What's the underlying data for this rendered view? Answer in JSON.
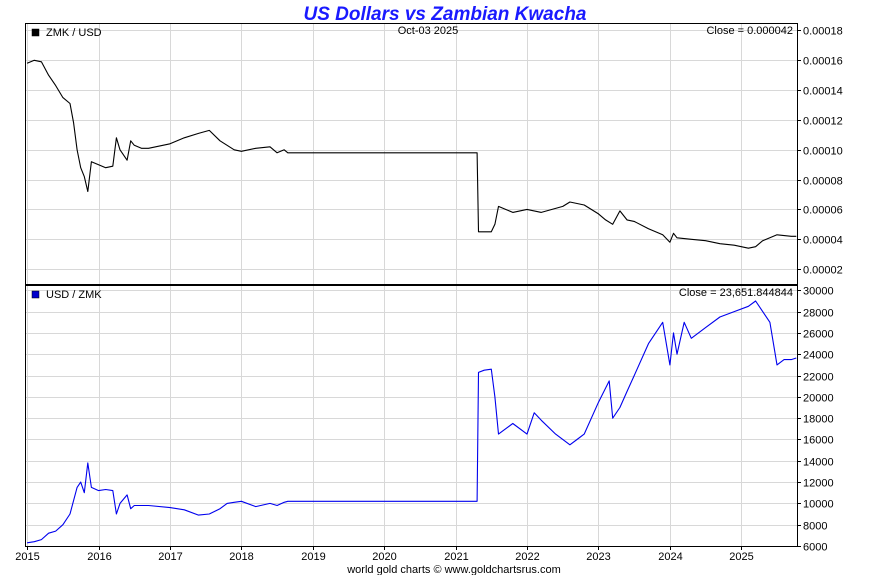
{
  "chart_data": [
    {
      "type": "line",
      "title": "US Dollars vs Zambian Kwacha",
      "legend": "ZMK / USD",
      "legend_color": "#000000",
      "date_label": "Oct-03  2025",
      "close_label": "Close = 0.000042",
      "line_color": "#000000",
      "ylim": [
        1e-05,
        0.000185
      ],
      "yticks": [
        2e-05,
        4e-05,
        6e-05,
        8e-05,
        0.0001,
        0.00012,
        0.00014,
        0.00016,
        0.00018
      ],
      "ytick_labels": [
        "0.00002",
        "0.00004",
        "0.00006",
        "0.00008",
        "0.00010",
        "0.00012",
        "0.00014",
        "0.00016",
        "0.00018"
      ],
      "x": [
        2015.0,
        2015.1,
        2015.2,
        2015.3,
        2015.4,
        2015.5,
        2015.6,
        2015.65,
        2015.7,
        2015.75,
        2015.8,
        2015.85,
        2015.9,
        2016.0,
        2016.1,
        2016.2,
        2016.25,
        2016.3,
        2016.4,
        2016.45,
        2016.5,
        2016.6,
        2016.7,
        2016.8,
        2017.0,
        2017.2,
        2017.4,
        2017.55,
        2017.7,
        2017.8,
        2017.9,
        2018.0,
        2018.2,
        2018.4,
        2018.5,
        2018.6,
        2018.65,
        2021.3,
        2021.32,
        2021.4,
        2021.5,
        2021.55,
        2021.6,
        2021.7,
        2021.8,
        2022.0,
        2022.2,
        2022.5,
        2022.6,
        2022.8,
        2023.0,
        2023.1,
        2023.2,
        2023.3,
        2023.4,
        2023.5,
        2023.7,
        2023.9,
        2024.0,
        2024.05,
        2024.1,
        2024.3,
        2024.5,
        2024.7,
        2024.9,
        2025.1,
        2025.2,
        2025.3,
        2025.5,
        2025.7,
        2025.77
      ],
      "y": [
        0.000158,
        0.00016,
        0.000159,
        0.00015,
        0.000143,
        0.000135,
        0.000131,
        0.000118,
        0.0001,
        8.8e-05,
        8.2e-05,
        7.2e-05,
        9.2e-05,
        9e-05,
        8.8e-05,
        8.9e-05,
        0.000108,
        0.0001,
        9.3e-05,
        0.000106,
        0.000103,
        0.000101,
        0.000101,
        0.000102,
        0.000104,
        0.000108,
        0.000111,
        0.000113,
        0.000106,
        0.000103,
        0.0001,
        9.9e-05,
        0.000101,
        0.000102,
        9.8e-05,
        0.0001,
        9.8e-05,
        9.8e-05,
        4.5e-05,
        4.5e-05,
        4.5e-05,
        5e-05,
        6.2e-05,
        6e-05,
        5.8e-05,
        6e-05,
        5.8e-05,
        6.2e-05,
        6.5e-05,
        6.3e-05,
        5.7e-05,
        5.3e-05,
        5e-05,
        5.9e-05,
        5.3e-05,
        5.2e-05,
        4.7e-05,
        4.3e-05,
        3.8e-05,
        4.4e-05,
        4.1e-05,
        4e-05,
        3.9e-05,
        3.7e-05,
        3.6e-05,
        3.4e-05,
        3.5e-05,
        3.9e-05,
        4.3e-05,
        4.2e-05,
        4.2e-05
      ]
    },
    {
      "type": "line",
      "legend": "USD / ZMK",
      "legend_color": "#0000cc",
      "close_label": "Close = 23,651.844844",
      "line_color": "#0000ee",
      "ylim": [
        6000,
        30500
      ],
      "yticks": [
        6000,
        8000,
        10000,
        12000,
        14000,
        16000,
        18000,
        20000,
        22000,
        24000,
        26000,
        28000,
        30000
      ],
      "ytick_labels": [
        "6000",
        "8000",
        "10000",
        "12000",
        "14000",
        "16000",
        "18000",
        "20000",
        "22000",
        "24000",
        "26000",
        "28000",
        "30000"
      ],
      "x": [
        2015.0,
        2015.1,
        2015.2,
        2015.3,
        2015.4,
        2015.5,
        2015.6,
        2015.7,
        2015.75,
        2015.8,
        2015.85,
        2015.9,
        2016.0,
        2016.1,
        2016.2,
        2016.25,
        2016.3,
        2016.4,
        2016.45,
        2016.5,
        2016.7,
        2017.0,
        2017.2,
        2017.4,
        2017.55,
        2017.7,
        2017.8,
        2017.9,
        2018.0,
        2018.2,
        2018.4,
        2018.5,
        2018.6,
        2018.65,
        2021.3,
        2021.32,
        2021.4,
        2021.5,
        2021.55,
        2021.6,
        2021.7,
        2021.8,
        2022.0,
        2022.1,
        2022.2,
        2022.4,
        2022.6,
        2022.7,
        2022.8,
        2023.0,
        2023.15,
        2023.2,
        2023.3,
        2023.4,
        2023.5,
        2023.7,
        2023.9,
        2024.0,
        2024.05,
        2024.1,
        2024.2,
        2024.3,
        2024.5,
        2024.7,
        2024.9,
        2025.1,
        2025.2,
        2025.3,
        2025.4,
        2025.5,
        2025.6,
        2025.7,
        2025.77
      ],
      "y": [
        6300,
        6400,
        6600,
        7200,
        7400,
        8000,
        9000,
        11500,
        12000,
        11000,
        13800,
        11500,
        11200,
        11300,
        11200,
        9000,
        10000,
        10800,
        9500,
        9800,
        9800,
        9600,
        9400,
        8900,
        9000,
        9500,
        10000,
        10100,
        10200,
        9700,
        10000,
        9800,
        10100,
        10200,
        10200,
        22300,
        22500,
        22600,
        20000,
        16500,
        17000,
        17500,
        16500,
        18500,
        17800,
        16500,
        15500,
        16000,
        16500,
        19500,
        21500,
        18000,
        19000,
        20500,
        22000,
        25000,
        27000,
        23000,
        26000,
        24000,
        27000,
        25500,
        26500,
        27500,
        28000,
        28500,
        29000,
        28000,
        27000,
        23000,
        23500,
        23500,
        23650
      ]
    }
  ],
  "x_axis": {
    "ticks": [
      2015,
      2016,
      2017,
      2018,
      2019,
      2020,
      2021,
      2022,
      2023,
      2024,
      2025
    ],
    "tick_labels": [
      "2015",
      "2016",
      "2017",
      "2018",
      "2019",
      "2020",
      "2021",
      "2022",
      "2023",
      "2024",
      "2025"
    ],
    "xlim": [
      2014.97,
      2025.78
    ]
  },
  "footer": "world gold charts © www.goldchartsrus.com"
}
